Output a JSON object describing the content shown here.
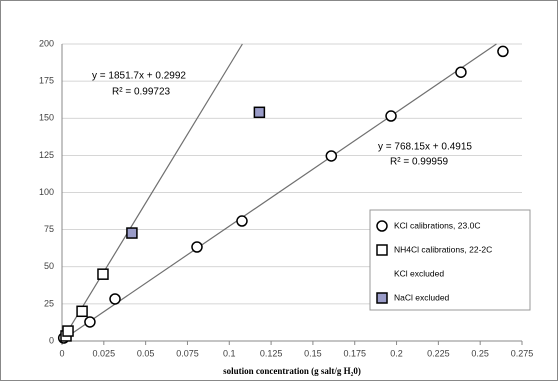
{
  "chart_data": {
    "type": "scatter",
    "x_label": "solution concentration (g salt/g H₂0)",
    "xlim": [
      0,
      0.275
    ],
    "xticks": [
      0,
      0.025,
      0.05,
      0.075,
      0.1,
      0.125,
      0.15,
      0.175,
      0.2,
      0.225,
      0.25,
      0.275
    ],
    "ylim": [
      0,
      200
    ],
    "yticks": [
      0,
      25,
      50,
      75,
      100,
      125,
      150,
      175,
      200
    ],
    "grid": true,
    "series": [
      {
        "name": "KCl calibrations, 23.0C",
        "marker": "circle",
        "color": "#ffffff",
        "x": [
          0.001,
          0.0167,
          0.0317,
          0.0807,
          0.1076,
          0.161,
          0.1967,
          0.2385,
          0.2636
        ],
        "values": [
          2,
          12.8,
          28.3,
          63.3,
          80.8,
          124.6,
          151.5,
          181,
          195
        ]
      },
      {
        "name": "NH4Cl calibrations, 22-2C",
        "marker": "square",
        "color": "#ffffff",
        "x": [
          0.0024,
          0.0036,
          0.012,
          0.0245
        ],
        "values": [
          3.4,
          6.7,
          20,
          45
        ]
      },
      {
        "name": "KCl excluded",
        "marker": "none",
        "color": "#ffffff",
        "x": [],
        "values": []
      },
      {
        "name": "NaCl excluded",
        "marker": "square",
        "color": "#9a9cc8",
        "x": [
          0.0418,
          0.118
        ],
        "values": [
          72.7,
          154
        ]
      }
    ],
    "trendlines": [
      {
        "slope": 1851.7,
        "intercept": 0.2992,
        "equation": "y = 1851.7x + 0.2992",
        "r2": "R² = 0.99723"
      },
      {
        "slope": 768.15,
        "intercept": 0.4915,
        "equation": "y = 768.15x + 0.4915",
        "r2": "R² = 0.99959"
      }
    ]
  }
}
